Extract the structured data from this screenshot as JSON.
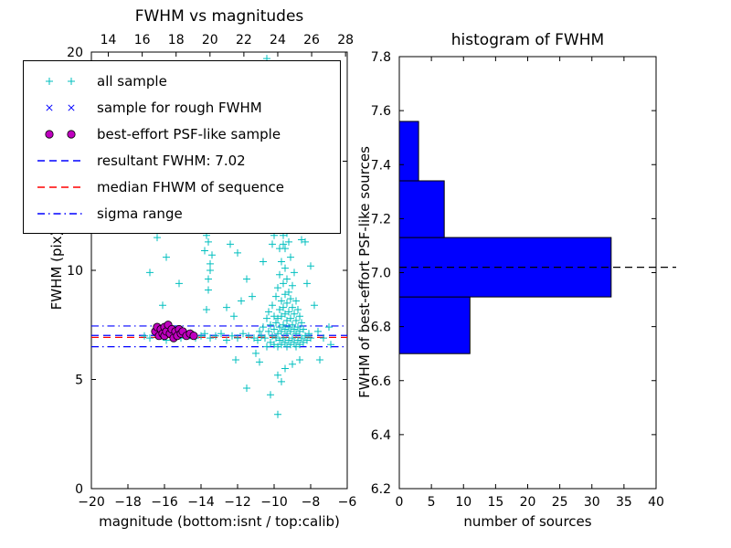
{
  "colors": {
    "all_sample": "#00bfbf",
    "rough_fwhm": "#0000ff",
    "psf_like": "#bf00bf",
    "median_line": "#ff0000",
    "resultant_line": "#0000ff",
    "sigma_line": "#0000ff",
    "bar_fill": "#0000ff",
    "axes": "#000000"
  },
  "chart_data": [
    {
      "type": "scatter",
      "title": "FWHM vs magnitudes",
      "xlabel": "magnitude (bottom:isnt / top:calib)",
      "ylabel": "FWHM (pix)",
      "xlim": [
        -20,
        -6
      ],
      "ylim": [
        0,
        20
      ],
      "x_ticks": [
        [
          -20,
          "−20"
        ],
        [
          -18,
          "−18"
        ],
        [
          -16,
          "−16"
        ],
        [
          -14,
          "−14"
        ],
        [
          -12,
          "−12"
        ],
        [
          -10,
          "−10"
        ],
        [
          -8,
          "−8"
        ],
        [
          -6,
          "−6"
        ]
      ],
      "y_ticks": [
        [
          0,
          "0"
        ],
        [
          5,
          "5"
        ],
        [
          10,
          "10"
        ],
        [
          15,
          "15"
        ],
        [
          20,
          "20"
        ]
      ],
      "top_axis": {
        "lim": [
          13.0,
          28.1
        ],
        "ticks": [
          [
            14,
            "14"
          ],
          [
            16,
            "16"
          ],
          [
            18,
            "18"
          ],
          [
            20,
            "20"
          ],
          [
            22,
            "22"
          ],
          [
            24,
            "24"
          ],
          [
            26,
            "26"
          ],
          [
            28,
            "28"
          ]
        ]
      },
      "legend": [
        {
          "label": "all sample",
          "marker": "plus",
          "color": "#00bfbf"
        },
        {
          "label": "sample for rough FWHM",
          "marker": "x",
          "color": "#0000ff"
        },
        {
          "label": "best-effort PSF-like sample",
          "marker": "circle",
          "color": "#bf00bf"
        },
        {
          "label": "resultant FWHM: 7.02",
          "marker": "dashed",
          "color": "#0000ff"
        },
        {
          "label": "median FHWM of sequence",
          "marker": "dashed",
          "color": "#ff0000"
        },
        {
          "label": "sigma range",
          "marker": "dashdot",
          "color": "#0000ff"
        }
      ],
      "hlines": [
        {
          "label": "sigma range low",
          "y": 6.5,
          "style": "dashdot",
          "color": "#0000ff"
        },
        {
          "label": "sigma range high",
          "y": 7.45,
          "style": "dashdot",
          "color": "#0000ff"
        },
        {
          "label": "median FHWM of sequence",
          "y": 6.93,
          "style": "dashed",
          "color": "#ff0000"
        },
        {
          "label": "resultant FWHM: 7.02",
          "y": 7.02,
          "style": "dashed",
          "color": "#0000ff"
        }
      ],
      "series": [
        {
          "name": "all sample",
          "marker": "plus",
          "color": "#00bfbf",
          "points": [
            [
              -17.1,
              7.0
            ],
            [
              -16.8,
              6.9
            ],
            [
              -16.5,
              7.1
            ],
            [
              -16.2,
              7.0
            ],
            [
              -15.9,
              6.8
            ],
            [
              -15.7,
              7.2
            ],
            [
              -15.4,
              7.0
            ],
            [
              -15.1,
              6.9
            ],
            [
              -14.9,
              7.1
            ],
            [
              -14.6,
              7.0
            ],
            [
              -14.3,
              6.9
            ],
            [
              -14.0,
              7.0
            ],
            [
              -13.8,
              7.1
            ],
            [
              -13.5,
              6.9
            ],
            [
              -13.2,
              7.0
            ],
            [
              -12.9,
              7.1
            ],
            [
              -12.6,
              6.8
            ],
            [
              -12.3,
              7.0
            ],
            [
              -12.0,
              6.9
            ],
            [
              -11.7,
              7.1
            ],
            [
              -11.4,
              7.0
            ],
            [
              -11.1,
              6.9
            ],
            [
              -10.9,
              6.8
            ],
            [
              -10.8,
              7.2
            ],
            [
              -10.7,
              7.0
            ],
            [
              -16.4,
              11.5
            ],
            [
              -15.9,
              10.6
            ],
            [
              -15.2,
              9.4
            ],
            [
              -16.8,
              9.9
            ],
            [
              -16.1,
              8.4
            ],
            [
              -13.7,
              8.2
            ],
            [
              -13.6,
              9.1
            ],
            [
              -13.5,
              10.3
            ],
            [
              -13.7,
              11.6
            ],
            [
              -13.6,
              11.3
            ],
            [
              -13.5,
              10.0
            ],
            [
              -13.6,
              9.6
            ],
            [
              -13.4,
              10.7
            ],
            [
              -13.8,
              10.9
            ],
            [
              -12.6,
              8.3
            ],
            [
              -12.2,
              7.9
            ],
            [
              -11.8,
              8.6
            ],
            [
              -12.4,
              11.2
            ],
            [
              -12.0,
              10.8
            ],
            [
              -11.5,
              9.6
            ],
            [
              -11.2,
              8.8
            ],
            [
              -10.6,
              7.4
            ],
            [
              -10.5,
              6.9
            ],
            [
              -10.4,
              7.8
            ],
            [
              -10.4,
              6.5
            ],
            [
              -10.3,
              7.2
            ],
            [
              -10.3,
              8.1
            ],
            [
              -10.2,
              6.7
            ],
            [
              -10.2,
              7.5
            ],
            [
              -10.1,
              7.0
            ],
            [
              -10.1,
              8.4
            ],
            [
              -10.0,
              6.6
            ],
            [
              -10.0,
              7.3
            ],
            [
              -10.0,
              7.9
            ],
            [
              -9.9,
              6.9
            ],
            [
              -9.9,
              7.6
            ],
            [
              -9.9,
              8.8
            ],
            [
              -9.8,
              6.5
            ],
            [
              -9.8,
              7.1
            ],
            [
              -9.8,
              7.8
            ],
            [
              -9.8,
              9.2
            ],
            [
              -9.7,
              6.8
            ],
            [
              -9.7,
              7.4
            ],
            [
              -9.7,
              8.2
            ],
            [
              -9.7,
              9.8
            ],
            [
              -9.6,
              6.6
            ],
            [
              -9.6,
              7.2
            ],
            [
              -9.6,
              7.9
            ],
            [
              -9.6,
              8.6
            ],
            [
              -9.6,
              10.4
            ],
            [
              -9.5,
              6.9
            ],
            [
              -9.5,
              7.5
            ],
            [
              -9.5,
              8.3
            ],
            [
              -9.5,
              9.4
            ],
            [
              -9.5,
              11.2
            ],
            [
              -9.5,
              11.6
            ],
            [
              -9.4,
              6.7
            ],
            [
              -9.4,
              7.3
            ],
            [
              -9.4,
              8.0
            ],
            [
              -9.4,
              8.9
            ],
            [
              -9.4,
              10.1
            ],
            [
              -9.4,
              11.0
            ],
            [
              -9.3,
              6.5
            ],
            [
              -9.3,
              7.1
            ],
            [
              -9.3,
              7.7
            ],
            [
              -9.3,
              8.5
            ],
            [
              -9.3,
              9.6
            ],
            [
              -9.3,
              11.7
            ],
            [
              -9.2,
              6.8
            ],
            [
              -9.2,
              7.4
            ],
            [
              -9.2,
              8.1
            ],
            [
              -9.2,
              9.0
            ],
            [
              -9.2,
              11.3
            ],
            [
              -9.1,
              6.6
            ],
            [
              -9.1,
              7.2
            ],
            [
              -9.1,
              7.8
            ],
            [
              -9.1,
              8.7
            ],
            [
              -9.1,
              10.6
            ],
            [
              -9.0,
              6.9
            ],
            [
              -9.0,
              7.5
            ],
            [
              -9.0,
              8.3
            ],
            [
              -9.0,
              9.3
            ],
            [
              -8.9,
              6.7
            ],
            [
              -8.9,
              7.3
            ],
            [
              -8.9,
              8.0
            ],
            [
              -8.9,
              9.9
            ],
            [
              -8.8,
              6.5
            ],
            [
              -8.8,
              7.1
            ],
            [
              -8.8,
              7.7
            ],
            [
              -8.8,
              8.6
            ],
            [
              -8.7,
              6.8
            ],
            [
              -8.7,
              7.4
            ],
            [
              -8.7,
              8.2
            ],
            [
              -8.6,
              6.6
            ],
            [
              -8.6,
              7.2
            ],
            [
              -8.6,
              7.9
            ],
            [
              -8.5,
              6.9
            ],
            [
              -8.5,
              7.6
            ],
            [
              -8.4,
              6.7
            ],
            [
              -8.4,
              7.3
            ],
            [
              -8.3,
              7.0
            ],
            [
              -8.2,
              6.8
            ],
            [
              -8.1,
              7.1
            ],
            [
              -8.0,
              6.9
            ],
            [
              -11.5,
              4.6
            ],
            [
              -10.2,
              4.3
            ],
            [
              -9.8,
              5.2
            ],
            [
              -9.4,
              5.5
            ],
            [
              -10.8,
              5.8
            ],
            [
              -11.0,
              6.2
            ],
            [
              -12.1,
              5.9
            ],
            [
              -9.0,
              5.7
            ],
            [
              -8.6,
              5.9
            ],
            [
              -9.6,
              4.9
            ],
            [
              -9.8,
              3.4
            ],
            [
              -10.4,
              19.7
            ],
            [
              -10.1,
              11.2
            ],
            [
              -10.6,
              10.4
            ],
            [
              -10.0,
              11.6
            ],
            [
              -9.7,
              11.0
            ],
            [
              -8.0,
              10.2
            ],
            [
              -7.8,
              8.4
            ],
            [
              -7.6,
              7.2
            ],
            [
              -7.3,
              6.9
            ],
            [
              -7.0,
              7.4
            ],
            [
              -6.9,
              6.6
            ],
            [
              -7.5,
              5.9
            ],
            [
              -8.2,
              9.4
            ],
            [
              -8.3,
              11.3
            ],
            [
              -8.5,
              11.4
            ]
          ]
        },
        {
          "name": "sample for rough FWHM",
          "marker": "x",
          "color": "#0000ff",
          "points": [
            [
              -16.45,
              7.3
            ],
            [
              -16.15,
              7.15
            ],
            [
              -15.95,
              7.35
            ],
            [
              -15.75,
              7.05
            ],
            [
              -15.55,
              7.25
            ],
            [
              -15.35,
              7.1
            ],
            [
              -15.15,
              7.2
            ],
            [
              -14.95,
              7.05
            ],
            [
              -14.7,
              7.15
            ],
            [
              -14.5,
              7.05
            ]
          ]
        },
        {
          "name": "best-effort PSF-like sample",
          "marker": "circle",
          "color": "#bf00bf",
          "points": [
            [
              -16.5,
              7.2
            ],
            [
              -16.4,
              7.4
            ],
            [
              -16.3,
              7.0
            ],
            [
              -16.2,
              7.3
            ],
            [
              -16.1,
              7.1
            ],
            [
              -16.0,
              7.4
            ],
            [
              -16.0,
              7.0
            ],
            [
              -15.9,
              7.2
            ],
            [
              -15.8,
              7.5
            ],
            [
              -15.7,
              7.1
            ],
            [
              -15.6,
              7.3
            ],
            [
              -15.5,
              6.9
            ],
            [
              -15.4,
              7.2
            ],
            [
              -15.3,
              7.0
            ],
            [
              -15.2,
              7.3
            ],
            [
              -15.1,
              7.1
            ],
            [
              -15.0,
              7.2
            ],
            [
              -14.8,
              7.0
            ],
            [
              -14.6,
              7.1
            ],
            [
              -14.4,
              7.0
            ]
          ]
        }
      ]
    },
    {
      "type": "bar",
      "orientation": "horizontal",
      "title": "histogram of FWHM",
      "xlabel": "number of sources",
      "ylabel": "FWHM of best-effort PSF-like sources",
      "xlim": [
        0,
        40
      ],
      "ylim": [
        6.2,
        7.8
      ],
      "x_ticks": [
        [
          0,
          "0"
        ],
        [
          5,
          "5"
        ],
        [
          10,
          "10"
        ],
        [
          15,
          "15"
        ],
        [
          20,
          "20"
        ],
        [
          25,
          "25"
        ],
        [
          30,
          "30"
        ],
        [
          35,
          "35"
        ],
        [
          40,
          "40"
        ]
      ],
      "y_ticks": [
        [
          6.2,
          "6.2"
        ],
        [
          6.4,
          "6.4"
        ],
        [
          6.6,
          "6.6"
        ],
        [
          6.8,
          "6.8"
        ],
        [
          7.0,
          "7.0"
        ],
        [
          7.2,
          "7.2"
        ],
        [
          7.4,
          "7.4"
        ],
        [
          7.6,
          "7.6"
        ],
        [
          7.8,
          "7.8"
        ]
      ],
      "bar_color": "#0000ff",
      "bars": [
        {
          "y0": 6.7,
          "y1": 6.91,
          "count": 11
        },
        {
          "y0": 6.91,
          "y1": 7.13,
          "count": 33
        },
        {
          "y0": 7.13,
          "y1": 7.34,
          "count": 7
        },
        {
          "y0": 7.34,
          "y1": 7.56,
          "count": 3
        }
      ],
      "hline": {
        "label": "resultant FWHM",
        "y": 7.02,
        "style": "dashed",
        "color": "#000000"
      }
    }
  ]
}
